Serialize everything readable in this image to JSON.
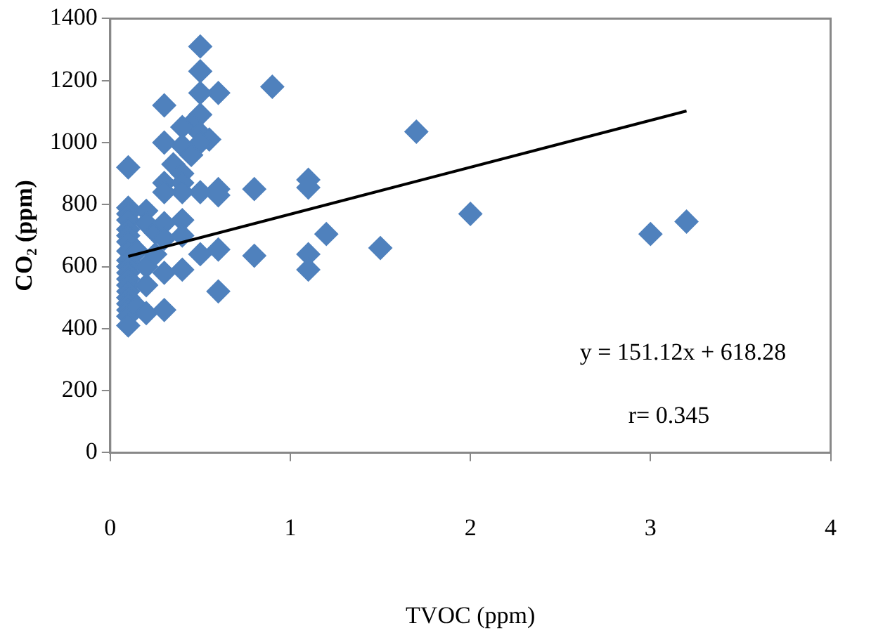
{
  "chart_data": {
    "type": "scatter",
    "xlabel": "TVOC (ppm)",
    "ylabel": "CO₂ (ppm)",
    "xlim": [
      0,
      4
    ],
    "xticks": [
      0,
      1,
      2,
      3,
      4
    ],
    "ylim": [
      0,
      1400
    ],
    "yticks": [
      0,
      200,
      400,
      600,
      800,
      1000,
      1200,
      1400
    ],
    "grid": false,
    "legend": false,
    "marker": "diamond",
    "annotations": [
      "y = 151.12x + 618.28",
      "r= 0.345"
    ],
    "series": [
      {
        "color": "#4f81bd",
        "x": [
          1.7,
          2,
          3,
          3.2,
          1.5,
          1.2,
          1.1,
          1.1,
          1.1,
          1.1,
          0.8,
          0.8,
          0.6,
          0.6,
          0.6,
          0.6,
          0.5,
          0.5,
          0.9,
          0.6,
          0.5,
          0.5,
          0.5,
          0.3,
          0.5,
          0.45,
          0.4,
          0.5,
          0.55,
          0.5,
          0.3,
          0.4,
          0.45,
          0.35,
          0.4,
          0.3,
          0.4,
          0.4,
          0.3,
          0.1,
          0.1,
          0.1,
          0.1,
          0.1,
          0.1,
          0.2,
          0.2,
          0.25,
          0.3,
          0.3,
          0.4,
          0.4,
          0.1,
          0.1,
          0.1,
          0.1,
          0.1,
          0.1,
          0.1,
          0.1,
          0.1,
          0.1,
          0.1,
          0.1,
          0.1,
          0.15,
          0.2,
          0.2,
          0.2,
          0.3,
          0.3,
          0.4,
          0.15,
          0.25
        ],
        "values": [
          1035,
          770,
          705,
          745,
          660,
          705,
          880,
          855,
          640,
          590,
          850,
          635,
          850,
          830,
          655,
          520,
          840,
          640,
          1180,
          1160,
          1310,
          1230,
          1160,
          1120,
          1090,
          1060,
          1050,
          1030,
          1010,
          1000,
          1000,
          990,
          960,
          930,
          900,
          870,
          870,
          840,
          840,
          920,
          790,
          770,
          750,
          720,
          700,
          780,
          740,
          710,
          740,
          690,
          750,
          700,
          680,
          650,
          620,
          600,
          580,
          560,
          540,
          520,
          500,
          480,
          460,
          440,
          410,
          470,
          450,
          540,
          600,
          460,
          580,
          590,
          650,
          640
        ]
      },
      {
        "type": "line",
        "color": "#000000",
        "marker": "none",
        "x": [
          0.1,
          3.2
        ],
        "values": [
          633,
          1102
        ]
      }
    ]
  }
}
